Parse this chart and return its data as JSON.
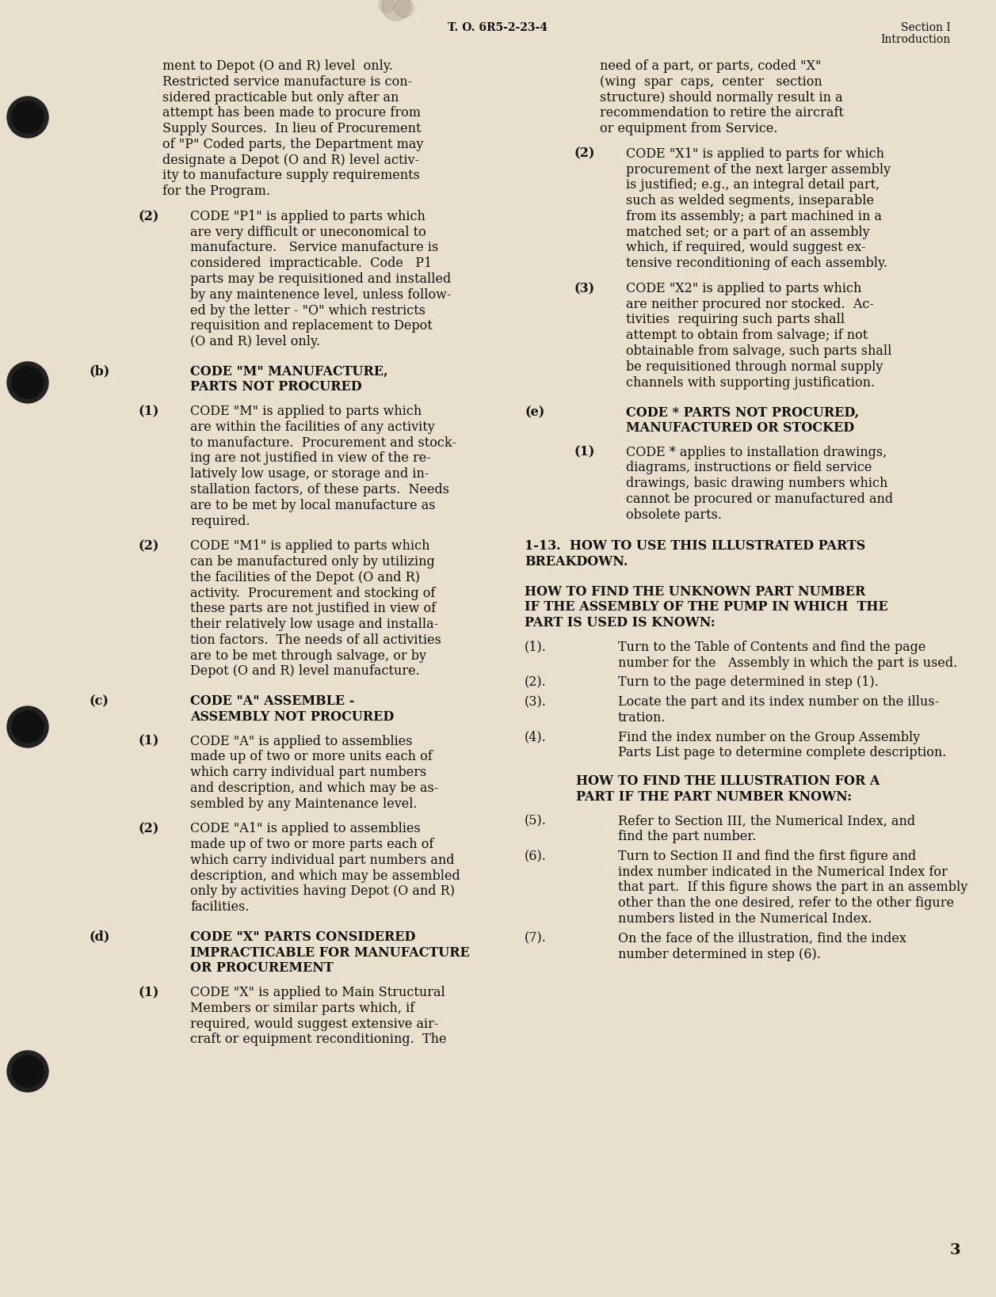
{
  "bg_color": "#e8e0cc",
  "text_color": "#111111",
  "header_center": "T. O. 6R5-2-23-4",
  "header_right_line1": "Section I",
  "header_right_line2": "Introduction",
  "page_number": "3"
}
